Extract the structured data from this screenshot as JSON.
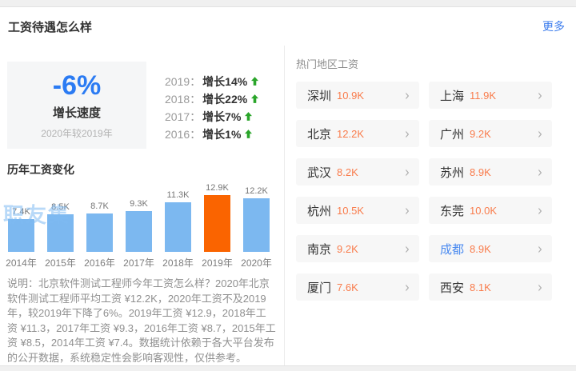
{
  "header": {
    "title": "工资待遇怎么样",
    "more_label": "更多"
  },
  "growth": {
    "value": "-6%",
    "label": "增长速度",
    "sublabel": "2020年较2019年",
    "history": [
      {
        "year": "2019：",
        "text": "增长14%"
      },
      {
        "year": "2018：",
        "text": "增长22%"
      },
      {
        "year": "2017：",
        "text": "增长7%"
      },
      {
        "year": "2016：",
        "text": "增长1%"
      }
    ]
  },
  "chart_data": {
    "type": "bar",
    "title": "历年工资变化",
    "watermark": "职友集",
    "categories": [
      "2014年",
      "2015年",
      "2016年",
      "2017年",
      "2018年",
      "2019年",
      "2020年"
    ],
    "values": [
      7.4,
      8.5,
      8.7,
      9.3,
      11.3,
      12.9,
      12.2
    ],
    "labels": [
      "7.4K",
      "8.5K",
      "8.7K",
      "9.3K",
      "11.3K",
      "12.9K",
      "12.2K"
    ],
    "unit": "K",
    "highlight_index": 5,
    "ylim": [
      0,
      12.9
    ],
    "grid": false,
    "legend": false
  },
  "description": "说明：北京软件测试工程师今年工资怎么样？2020年北京软件测试工程师平均工资 ¥12.2K，2020年工资不及2019年，较2019年下降了6%。2019年工资 ¥12.9，2018年工资 ¥11.3，2017年工资 ¥9.3，2016年工资 ¥8.7，2015年工资 ¥8.5，2014年工资 ¥7.4。数据统计依赖于各大平台发布的公开数据，系统稳定性会影响客观性，仅供参考。",
  "regions": {
    "title": "热门地区工资",
    "chevron": "›",
    "items": [
      {
        "city": "深圳",
        "salary": "10.9K",
        "highlighted": false
      },
      {
        "city": "上海",
        "salary": "11.9K",
        "highlighted": false
      },
      {
        "city": "北京",
        "salary": "12.2K",
        "highlighted": false
      },
      {
        "city": "广州",
        "salary": "9.2K",
        "highlighted": false
      },
      {
        "city": "武汉",
        "salary": "8.2K",
        "highlighted": false
      },
      {
        "city": "苏州",
        "salary": "8.9K",
        "highlighted": false
      },
      {
        "city": "杭州",
        "salary": "10.5K",
        "highlighted": false
      },
      {
        "city": "东莞",
        "salary": "10.0K",
        "highlighted": false
      },
      {
        "city": "南京",
        "salary": "9.2K",
        "highlighted": false
      },
      {
        "city": "成都",
        "salary": "8.9K",
        "highlighted": true
      },
      {
        "city": "厦门",
        "salary": "7.6K",
        "highlighted": false
      },
      {
        "city": "西安",
        "salary": "8.1K",
        "highlighted": false
      }
    ]
  },
  "colors": {
    "accent_blue": "#2b7bf3",
    "link_blue": "#3a7bed",
    "green_arrow": "#2aa52a",
    "bar_blue": "#7cb8f0",
    "bar_orange": "#fa6400",
    "salary_orange": "#f97c4c",
    "city_blue": "#4a8af0"
  }
}
